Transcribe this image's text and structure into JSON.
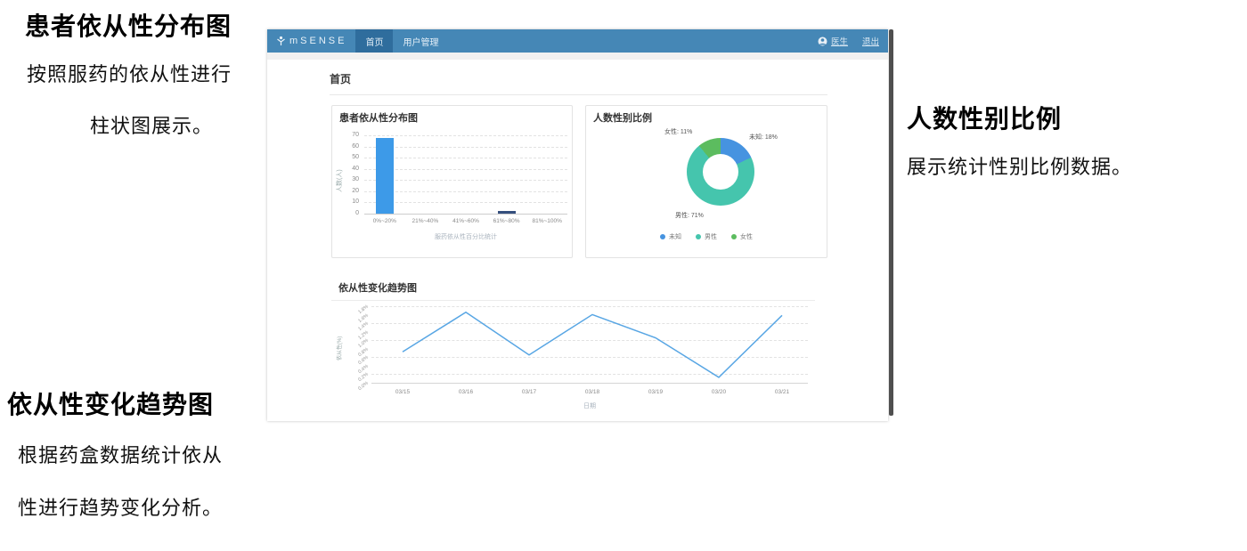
{
  "annotations": {
    "left_top": {
      "title": "患者依从性分布图",
      "line1": "按照服药的依从性进行",
      "line2": "柱状图展示。"
    },
    "left_bottom": {
      "title": "依从性变化趋势图",
      "line1": "根据药盒数据统计依从",
      "line2": "性进行趋势变化分析。"
    },
    "right": {
      "title": "人数性别比例",
      "line1": "展示统计性别比例数据。"
    }
  },
  "app": {
    "brand": "mSENSE",
    "tabs": [
      {
        "label": "首页",
        "active": true
      },
      {
        "label": "用户管理",
        "active": false
      }
    ],
    "user": "医生",
    "logout": "退出",
    "page_title": "首页"
  },
  "colors": {
    "navbar": "#4587b6",
    "navbar_active": "#2f6d9d",
    "bar_blue": "#3d9ae8",
    "bar_dark": "#35507e",
    "pie_blue": "#4693e0",
    "pie_teal": "#45c5ad",
    "pie_green": "#5cbc5f",
    "line_blue": "#58a6e4"
  },
  "chart_data": [
    {
      "type": "bar",
      "title": "患者依从性分布图",
      "categories": [
        "0%~20%",
        "21%~40%",
        "41%~60%",
        "61%~80%",
        "81%~100%"
      ],
      "values": [
        68,
        0,
        0,
        2,
        0
      ],
      "bar_colors": [
        "#3d9ae8",
        "#3d9ae8",
        "#3d9ae8",
        "#35507e",
        "#3d9ae8"
      ],
      "xlabel": "服药依从性百分比统计",
      "ylabel": "人数(人)",
      "ylim": [
        0,
        70
      ],
      "yticks": [
        70,
        60,
        50,
        40,
        30,
        20,
        10,
        0
      ],
      "grid": true
    },
    {
      "type": "pie",
      "title": "人数性别比例",
      "slices": [
        {
          "label": "未知",
          "pct": 18,
          "color": "#4693e0"
        },
        {
          "label": "男性",
          "pct": 71,
          "color": "#45c5ad"
        },
        {
          "label": "女性",
          "pct": 11,
          "color": "#5cbc5f"
        }
      ],
      "legend": [
        "未知",
        "男性",
        "女性"
      ],
      "legend_position": "bottom",
      "donut": true
    },
    {
      "type": "line",
      "title": "依从性变化趋势图",
      "x": [
        "03/15",
        "03/16",
        "03/17",
        "03/18",
        "03/19",
        "03/20",
        "03/21"
      ],
      "values": [
        40,
        91,
        36,
        88,
        58,
        7,
        87
      ],
      "yticks": [
        "1.8%",
        "1.6%",
        "1.4%",
        "1.2%",
        "1.0%",
        "0.8%",
        "0.6%",
        "0.4%",
        "0.2%",
        "0.0%"
      ],
      "xlabel": "日期",
      "ylabel": "依从性(%)",
      "grid": true,
      "line_color": "#58a6e4"
    }
  ]
}
